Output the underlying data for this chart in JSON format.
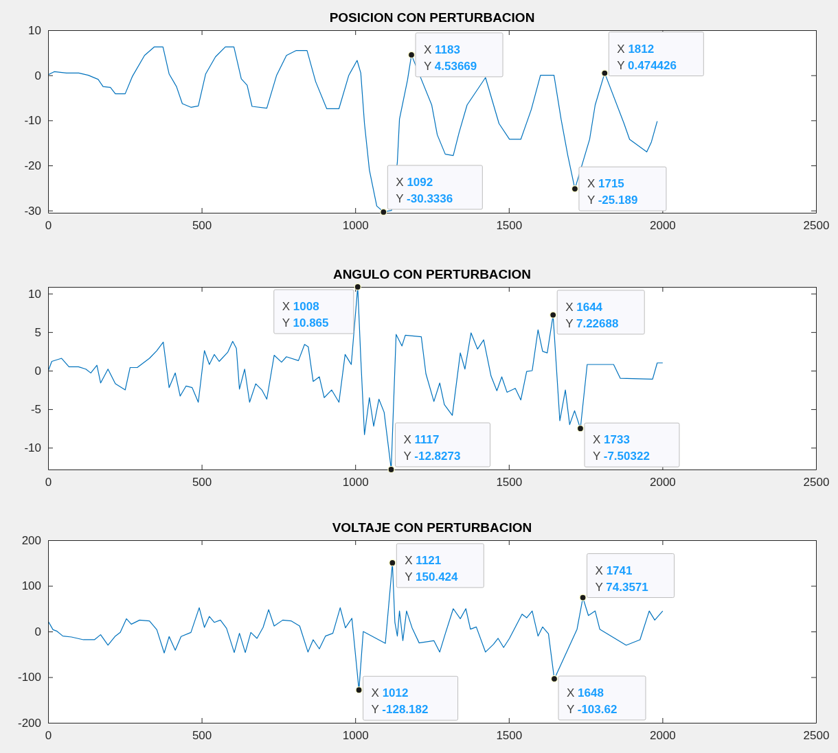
{
  "chart_data": [
    {
      "type": "line",
      "title": "POSICION CON PERTURBACION",
      "xlim": [
        0,
        2500
      ],
      "xticks": [
        0,
        500,
        1000,
        1500,
        2000,
        2500
      ],
      "ylim": [
        -30.5,
        10
      ],
      "yticks": [
        -30,
        -20,
        -10,
        0,
        10
      ],
      "series": [
        {
          "color": "#0072bd",
          "x": [
            0,
            20,
            60,
            100,
            131,
            163,
            179,
            203,
            219,
            251,
            274,
            314,
            346,
            374,
            394,
            418,
            437,
            465,
            489,
            513,
            545,
            577,
            605,
            629,
            648,
            664,
            712,
            744,
            776,
            808,
            843,
            871,
            907,
            947,
            979,
            1006,
            1018,
            1030,
            1046,
            1070,
            1092,
            1118,
            1137,
            1144,
            1170,
            1183,
            1249,
            1267,
            1293,
            1319,
            1338,
            1364,
            1424,
            1468,
            1502,
            1539,
            1573,
            1603,
            1647,
            1670,
            1692,
            1715,
            1763,
            1781,
            1812,
            1875,
            1893,
            1949,
            1964,
            1983
          ],
          "values": [
            0.1,
            0.8,
            0.5,
            0.5,
            0,
            -0.9,
            -2.5,
            -2.7,
            -4.1,
            -4.1,
            -0.3,
            4.4,
            6.3,
            6.3,
            0.3,
            -2.5,
            -6.3,
            -7.1,
            -6.8,
            0.3,
            4.1,
            6.3,
            6.3,
            -0.8,
            -2.2,
            -6.9,
            -7.3,
            0,
            4.4,
            5.5,
            5.5,
            -1.4,
            -7.4,
            -7.4,
            0,
            3.3,
            0.5,
            -10.7,
            -21,
            -29,
            -30.3,
            -30,
            -19.3,
            -9.7,
            -1.1,
            4.5,
            -6.6,
            -13.2,
            -17.5,
            -17.8,
            -12.7,
            -6.6,
            -0.5,
            -10.7,
            -14.2,
            -14.2,
            -7.6,
            0,
            0,
            -9.7,
            -17.8,
            -25.2,
            -14.2,
            -6.6,
            0.5,
            -10.7,
            -14.2,
            -17,
            -14.8,
            -10.2
          ]
        }
      ],
      "annotations": [
        {
          "text": "X 1092\nY -30.3336",
          "x": 1092,
          "y": -30.3336
        },
        {
          "text": "X 1183\nY 4.53669",
          "x": 1183,
          "y": 4.53669
        },
        {
          "text": "X 1715\nY -25.189",
          "x": 1715,
          "y": -25.189
        },
        {
          "text": "X 1812\nY 0.474426",
          "x": 1812,
          "y": 0.474426
        }
      ]
    },
    {
      "type": "line",
      "title": "ANGULO CON PERTURBACION",
      "xlim": [
        0,
        2500
      ],
      "xticks": [
        0,
        500,
        1000,
        1500,
        2000,
        2500
      ],
      "ylim": [
        -12.8273,
        10.865
      ],
      "yticks": [
        -10,
        -5,
        0,
        5,
        10
      ],
      "series": [
        {
          "color": "#0072bd",
          "x": [
            0,
            12,
            44,
            68,
            99,
            123,
            139,
            159,
            171,
            195,
            219,
            251,
            267,
            290,
            330,
            354,
            375,
            394,
            414,
            430,
            449,
            469,
            489,
            509,
            525,
            541,
            557,
            585,
            601,
            613,
            623,
            640,
            656,
            676,
            696,
            712,
            736,
            760,
            776,
            815,
            835,
            847,
            863,
            883,
            899,
            923,
            947,
            967,
            987,
            1008,
            1018,
            1030,
            1046,
            1060,
            1077,
            1094,
            1117,
            1133,
            1152,
            1163,
            1215,
            1230,
            1256,
            1275,
            1290,
            1316,
            1342,
            1357,
            1377,
            1398,
            1418,
            1442,
            1461,
            1477,
            1494,
            1521,
            1539,
            1558,
            1576,
            1595,
            1610,
            1625,
            1644,
            1666,
            1684,
            1698,
            1714,
            1733,
            1755,
            1841,
            1863,
            1968,
            1983,
            2001
          ],
          "values": [
            -0.1,
            1.2,
            1.6,
            0.5,
            0.5,
            0.2,
            -0.3,
            0.7,
            -1.6,
            0.2,
            -1.7,
            -2.5,
            0.4,
            0.4,
            1.6,
            2.6,
            3.7,
            -2.2,
            -0.3,
            -3.3,
            -2,
            -2.2,
            -4.1,
            2.6,
            0.8,
            2.1,
            1.2,
            2.4,
            3.8,
            2.9,
            -2.4,
            0.2,
            -4.1,
            -1.7,
            -2.5,
            -3.7,
            2,
            1.1,
            1.8,
            1.3,
            3.4,
            3.1,
            -1.4,
            -0.8,
            -3.5,
            -2.5,
            -4.1,
            2.1,
            0.8,
            10.865,
            1.6,
            -8.3,
            -3.5,
            -7.2,
            -3.7,
            -5.4,
            -12.8,
            4.7,
            3.2,
            4.6,
            4.4,
            -0.4,
            -4,
            -1.6,
            -4.4,
            -5.8,
            2.3,
            0.2,
            4.9,
            2.8,
            4,
            -0.7,
            -2.6,
            -0.8,
            -2.8,
            -2.3,
            -3.8,
            -0.1,
            0,
            5.3,
            2.5,
            2.3,
            7.2,
            -6.5,
            -2.5,
            -7,
            -5.2,
            -7.5,
            0.8,
            0.8,
            -1,
            -1.1,
            1,
            1
          ]
        }
      ],
      "annotations": [
        {
          "text": "X 1008\nY 10.865",
          "x": 1008,
          "y": 10.865
        },
        {
          "text": "X 1117\nY -12.8273",
          "x": 1117,
          "y": -12.8273
        },
        {
          "text": "X 1644\nY 7.22688",
          "x": 1644,
          "y": 7.22688
        },
        {
          "text": "X 1733\nY -7.50322",
          "x": 1733,
          "y": -7.50322
        }
      ]
    },
    {
      "type": "line",
      "title": "VOLTAJE CON PERTURBACION",
      "xlim": [
        0,
        2500
      ],
      "xticks": [
        0,
        500,
        1000,
        1500,
        2000,
        2500
      ],
      "ylim": [
        -200,
        200
      ],
      "yticks": [
        -200,
        -100,
        0,
        100,
        200
      ],
      "series": [
        {
          "color": "#0072bd",
          "x": [
            0,
            16,
            28,
            48,
            76,
            115,
            151,
            171,
            195,
            219,
            235,
            255,
            271,
            298,
            330,
            354,
            378,
            394,
            414,
            433,
            465,
            492,
            509,
            525,
            541,
            561,
            581,
            606,
            623,
            642,
            660,
            680,
            700,
            718,
            736,
            764,
            792,
            819,
            846,
            863,
            883,
            903,
            927,
            951,
            968,
            989,
            1012,
            1026,
            1098,
            1121,
            1129,
            1137,
            1144,
            1155,
            1167,
            1185,
            1208,
            1256,
            1275,
            1293,
            1319,
            1342,
            1360,
            1375,
            1394,
            1424,
            1450,
            1465,
            1483,
            1502,
            1543,
            1558,
            1576,
            1595,
            1610,
            1629,
            1648,
            1722,
            1741,
            1759,
            1781,
            1796,
            1882,
            1927,
            1957,
            1975,
            2001
          ],
          "values": [
            23,
            4,
            1,
            -10,
            -12,
            -18,
            -18,
            -7,
            -30,
            -10,
            -2,
            28,
            16,
            25,
            23,
            4,
            -47,
            -11,
            -41,
            -11,
            -2,
            52,
            9,
            33,
            20,
            25,
            7,
            -46,
            -4,
            -46,
            -2,
            -15,
            9,
            48,
            12,
            25,
            23,
            12,
            -45,
            -18,
            -38,
            -10,
            -4,
            52,
            8,
            29,
            -128,
            0,
            -26,
            150,
            20,
            -10,
            45,
            -20,
            45,
            8,
            -25,
            -20,
            -45,
            -5,
            50,
            28,
            50,
            5,
            10,
            -45,
            -28,
            -15,
            -35,
            -15,
            38,
            30,
            45,
            -10,
            10,
            -5,
            -104,
            5,
            74,
            35,
            45,
            5,
            -30,
            -18,
            45,
            25,
            45
          ]
        }
      ],
      "annotations": [
        {
          "text": "X 1012\nY -128.182",
          "x": 1012,
          "y": -128.182
        },
        {
          "text": "X 1121\nY 150.424",
          "x": 1121,
          "y": 150.424
        },
        {
          "text": "X 1648\nY -103.62",
          "x": 1648,
          "y": -103.62
        },
        {
          "text": "X 1741\nY 74.3571",
          "x": 1741,
          "y": 74.3571
        }
      ]
    }
  ]
}
